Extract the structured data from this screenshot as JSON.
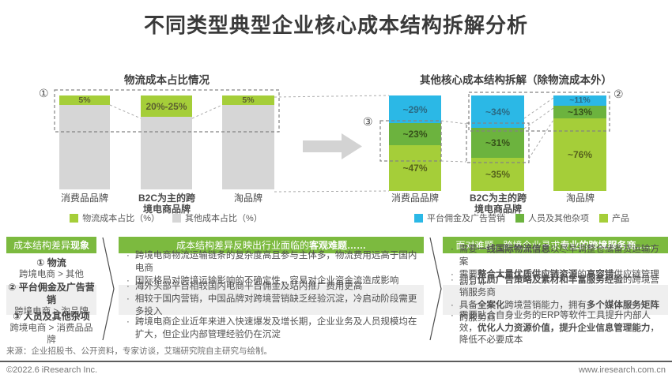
{
  "title": "不同类型典型企业核心成本结构拆解分析",
  "annotations": {
    "left": "①",
    "right_top": "②",
    "right_mid": "③"
  },
  "chart_data": [
    {
      "type": "bar",
      "stacked": true,
      "title": "物流成本占比情况",
      "categories": [
        {
          "label": "消费品品牌",
          "bold": false
        },
        {
          "label": "B2C为主的跨\n境电商品牌",
          "bold": true
        },
        {
          "label": "淘品牌",
          "bold": false
        }
      ],
      "series": [
        {
          "name": "物流成本占比（%）",
          "color": "#a5ce39",
          "label_color": "#5c6030",
          "values": [
            5,
            22.5,
            5
          ],
          "labels": [
            "5%",
            "20%-25%",
            "5%"
          ]
        },
        {
          "name": "其他成本占比（%）",
          "color": "#d6d6d6",
          "label_color": "#666666",
          "values": [
            95,
            77.5,
            95
          ],
          "labels": null
        }
      ],
      "ylim": [
        0,
        100
      ],
      "legend_position": "bottom",
      "grid": false
    },
    {
      "type": "bar",
      "stacked": true,
      "title": "其他核心成本结构拆解（除物流成本外）",
      "categories": [
        {
          "label": "消费品品牌",
          "bold": false
        },
        {
          "label": "B2C为主的跨\n境电商品牌",
          "bold": true
        },
        {
          "label": "淘品牌",
          "bold": false
        }
      ],
      "series": [
        {
          "name": "平台佣金及广告营销",
          "color": "#2bb8e6",
          "label_color": "#2a6a84",
          "values": [
            29,
            34,
            11
          ],
          "labels": [
            "~29%",
            "~34%",
            "~11%"
          ]
        },
        {
          "name": "人员及其他杂项",
          "color": "#6cb33e",
          "label_color": "#36511a",
          "values": [
            23,
            31,
            13
          ],
          "labels": [
            "~23%",
            "~31%",
            "~13%"
          ]
        },
        {
          "name": "产品",
          "color": "#a5ce39",
          "label_color": "#55611c",
          "values": [
            47,
            35,
            76
          ],
          "labels": [
            "~47%",
            "~35%",
            "~76%"
          ]
        }
      ],
      "ylim": [
        0,
        100
      ],
      "legend_position": "bottom",
      "grid": false
    }
  ],
  "table": {
    "col1": {
      "header": [
        {
          "t": "成本结构差异"
        },
        {
          "t": "现象",
          "b": 1
        }
      ],
      "rows": [
        {
          "title": "① 物流",
          "compare": "跨境电商 > 其他"
        },
        {
          "title": "② 平台佣金及广告营销",
          "compare": "跨境电商 > 淘品牌"
        },
        {
          "title": "③ 人员及其他杂项",
          "compare": "跨境电商 > 消费品品牌"
        }
      ]
    },
    "col2": {
      "header": [
        {
          "t": "成本结构差异反映出行业面临的"
        },
        {
          "t": "客观难题……",
          "b": 1
        }
      ],
      "rows": [
        {
          "bullets": [
            [
              {
                "t": "跨境电商物流运输链条的复杂度高且参与主体多，物流费用远高于国内电商"
              }
            ],
            [
              {
                "t": "国际格局对跨境运输影响的不确定性，容易对企业资金流造成影响"
              }
            ]
          ]
        },
        {
          "bullets": [
            [
              {
                "t": "海外头部平台相较国内电商平台佣金及站内推广费用更高"
              }
            ],
            [
              {
                "t": "相较于国内营销，中国品牌对跨境营销缺乏经验沉淀，冷启动阶段需更多投入"
              }
            ]
          ]
        },
        {
          "bullets": [
            [
              {
                "t": "跨境电商企业近年来进入快速爆发及增长期，企业业务及人员规模均在扩大，但企业内部管理经验仍在沉淀"
              }
            ]
          ]
        }
      ]
    },
    "col3": {
      "header": [
        {
          "t": "面对难题，跨境企业寻求"
        },
        {
          "t": "专业的跨境服务商……",
          "b": 1
        }
      ],
      "rows": [
        {
          "bullets": [
            [
              {
                "t": "需要"
              },
              {
                "t": "一线国际物流信息",
                "b": 1
              },
              {
                "t": "以尽早调整仓储备货运输方案"
              }
            ],
            [
              {
                "t": "需要"
              },
              {
                "t": "整合大量优质供应链资源",
                "b": 1
              },
              {
                "t": "的"
              },
              {
                "t": "高容错",
                "b": 1
              },
              {
                "t": "供应链管理服务商"
              }
            ]
          ]
        },
        {
          "bullets": [
            [
              {
                "t": "拥有"
              },
              {
                "t": "优质广告策略及素材和丰富服务经验",
                "b": 1
              },
              {
                "t": "的跨境营销服务商"
              }
            ],
            [
              {
                "t": "具备"
              },
              {
                "t": "全案化",
                "b": 1
              },
              {
                "t": "跨境营销能力，拥有"
              },
              {
                "t": "多个媒体服务矩阵",
                "b": 1
              },
              {
                "t": "的服务商"
              }
            ]
          ]
        },
        {
          "bullets": [
            [
              {
                "t": "需要贴合自身业务的ERP等软件工具提升内部人效，"
              },
              {
                "t": "优化人力资源价值，提升企业信息管理能力",
                "b": 1
              },
              {
                "t": "，降低不必要成本"
              }
            ]
          ]
        }
      ]
    }
  },
  "source": "来源：企业招股书、公开资料，专家访谈，艾瑞研究院自主研究与绘制。",
  "footer": {
    "copyright": "©2022.6 iResearch Inc.",
    "website": "www.iresearch.com.cn"
  },
  "colors": {
    "header_green": "#7cba3f",
    "blue": "#2bb8e6",
    "mid_green": "#6cb33e",
    "light_green": "#a5ce39",
    "bar_gray": "#d6d6d6",
    "row_gray": "#efefef"
  }
}
